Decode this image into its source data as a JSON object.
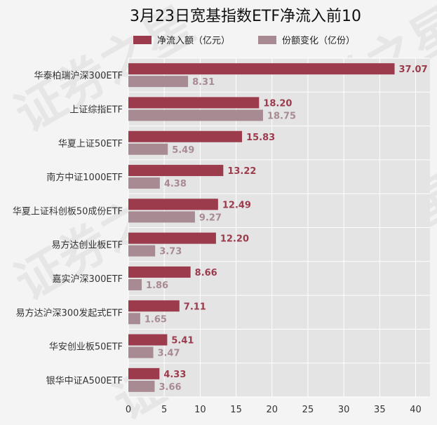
{
  "chart_data": {
    "type": "bar",
    "orientation": "horizontal",
    "title": "3月23日宽基指数ETF净流入前10",
    "categories": [
      "华泰柏瑞沪深300ETF",
      "上证综指ETF",
      "华夏上证50ETF",
      "南方中证1000ETF",
      "华夏上证科创板50成份ETF",
      "易方达创业板ETF",
      "嘉实沪深300ETF",
      "易方达沪深300发起式ETF",
      "华安创业板50ETF",
      "银华中证A500ETF"
    ],
    "series": [
      {
        "name": "净流入额（亿元）",
        "color": "#9b3b4c",
        "values": [
          37.07,
          18.2,
          15.83,
          13.22,
          12.49,
          12.2,
          8.66,
          7.11,
          5.41,
          4.33
        ],
        "value_labels": [
          "37.07",
          "18.20",
          "15.83",
          "13.22",
          "12.49",
          "12.20",
          "8.66",
          "7.11",
          "5.41",
          "4.33"
        ]
      },
      {
        "name": "份额变化（亿份）",
        "color": "#a88a92",
        "values": [
          8.31,
          18.75,
          5.49,
          4.38,
          9.27,
          3.73,
          1.86,
          1.65,
          3.47,
          3.66
        ],
        "value_labels": [
          "8.31",
          "18.75",
          "5.49",
          "4.38",
          "9.27",
          "3.73",
          "1.86",
          "1.65",
          "3.47",
          "3.66"
        ]
      }
    ],
    "xlim": [
      0,
      42
    ],
    "xticks": [
      0,
      5,
      10,
      15,
      20,
      25,
      30,
      35,
      40
    ],
    "xtick_labels": [
      "0",
      "5",
      "10",
      "15",
      "20",
      "25",
      "30",
      "35",
      "40"
    ],
    "xlabel": "",
    "ylabel": "",
    "legend_position": "top",
    "grid": true,
    "plot_background": "#e4e4e4"
  },
  "watermark": "证券之星"
}
